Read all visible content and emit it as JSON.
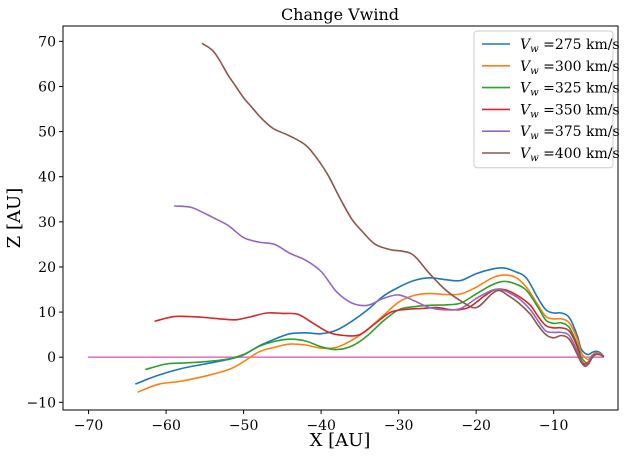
{
  "chart_data": {
    "type": "line",
    "title": "Change Vwind",
    "xlabel": "X [AU]",
    "ylabel": "Z [AU]",
    "xlim": [
      -73.3,
      -1.7
    ],
    "ylim": [
      -11.7,
      73.4
    ],
    "x_ticks": [
      -70,
      -60,
      -50,
      -40,
      -30,
      -20,
      -10
    ],
    "x_tick_labels": [
      "−70",
      "−60",
      "−50",
      "−40",
      "−30",
      "−20",
      "−10"
    ],
    "y_ticks": [
      -10,
      0,
      10,
      20,
      30,
      40,
      50,
      60,
      70
    ],
    "y_tick_labels": [
      "−10",
      "0",
      "10",
      "20",
      "30",
      "40",
      "50",
      "60",
      "70"
    ],
    "grid": false,
    "legend_position": "top-right",
    "series": [
      {
        "name": "Vw =275 km/s",
        "legend_var": "V",
        "legend_sub": "w",
        "legend_rest": " =275 km/s",
        "color": "#1f77b4",
        "x": [
          -63.9,
          -61,
          -58,
          -55,
          -52,
          -50,
          -48,
          -46,
          -44,
          -42,
          -40,
          -38,
          -36,
          -34,
          -32,
          -30,
          -28,
          -26,
          -24,
          -22,
          -20,
          -18,
          -16.5,
          -15,
          -13.5,
          -12,
          -11,
          -10,
          -9,
          -8,
          -7,
          -6.5,
          -6,
          -5.5,
          -5,
          -4.5,
          -4,
          -3.6
        ],
        "y": [
          -5.9,
          -4,
          -2.5,
          -1.5,
          -0.5,
          0.5,
          2.5,
          4.0,
          5.2,
          5.4,
          5.2,
          6.0,
          8.0,
          10.5,
          13.5,
          15.5,
          17,
          17.6,
          17.2,
          17.0,
          18.5,
          19.5,
          19.8,
          19.0,
          17.5,
          13.0,
          10.5,
          9.8,
          9.8,
          8.8,
          5.0,
          2.0,
          0.9,
          0.6,
          1.1,
          1.3,
          1.0,
          0.3
        ]
      },
      {
        "name": "Vw =300 km/s",
        "legend_var": "V",
        "legend_sub": "w",
        "legend_rest": " =300 km/s",
        "color": "#ff7f0e",
        "x": [
          -63.6,
          -61,
          -58,
          -55,
          -52,
          -50,
          -48,
          -46,
          -44,
          -42,
          -40,
          -38,
          -36,
          -34,
          -32,
          -30,
          -28,
          -26,
          -24,
          -22,
          -20,
          -18,
          -16.5,
          -15,
          -13.5,
          -12,
          -11,
          -10,
          -9,
          -8,
          -7,
          -6.5,
          -6,
          -5.5,
          -5,
          -4.5,
          -4,
          -3.6
        ],
        "y": [
          -7.7,
          -6.0,
          -5.3,
          -4.2,
          -2.8,
          -1.0,
          1.2,
          2.2,
          2.9,
          2.7,
          2.0,
          2.2,
          3.8,
          6.2,
          9.2,
          12.2,
          13.7,
          14.1,
          13.9,
          14.0,
          15.5,
          17.5,
          18.2,
          17.8,
          15.5,
          11.5,
          9.0,
          8.5,
          8.5,
          7.6,
          4.2,
          1.2,
          0.0,
          -0.5,
          0.5,
          1.0,
          0.8,
          0.3
        ]
      },
      {
        "name": "Vw =325 km/s",
        "legend_var": "V",
        "legend_sub": "w",
        "legend_rest": " =325 km/s",
        "color": "#2ca02c",
        "x": [
          -62.6,
          -60,
          -58,
          -55,
          -52,
          -50,
          -48,
          -46,
          -44,
          -42,
          -40,
          -38,
          -36,
          -34,
          -32,
          -30,
          -28,
          -26,
          -24,
          -22,
          -20,
          -18,
          -16.5,
          -15,
          -13.5,
          -12,
          -11,
          -10,
          -9,
          -8,
          -7,
          -6.5,
          -6,
          -5.5,
          -5,
          -4.5,
          -4,
          -3.6
        ],
        "y": [
          -2.7,
          -1.5,
          -1.3,
          -1.0,
          -0.4,
          0.6,
          2.4,
          3.5,
          4.0,
          3.6,
          2.3,
          1.7,
          2.5,
          4.8,
          8.0,
          10.5,
          11.2,
          11.5,
          11.6,
          12.0,
          14.0,
          16.0,
          16.8,
          16.3,
          14.8,
          11.0,
          8.2,
          7.5,
          7.6,
          6.6,
          3.0,
          0.3,
          -1.0,
          -1.3,
          0.0,
          0.8,
          0.6,
          0.2
        ]
      },
      {
        "name": "Vw =350 km/s",
        "legend_var": "V",
        "legend_sub": "w",
        "legend_rest": " =350 km/s",
        "color": "#d62728",
        "x": [
          -61.4,
          -59,
          -57,
          -55,
          -53,
          -51,
          -49,
          -47,
          -45,
          -43,
          -41,
          -39,
          -37,
          -35,
          -33,
          -31,
          -29,
          -27,
          -25,
          -23,
          -21,
          -19,
          -17.5,
          -16,
          -14.5,
          -13,
          -12,
          -11,
          -10,
          -9,
          -8,
          -7,
          -6.5,
          -6,
          -5.5,
          -5,
          -4.5,
          -4,
          -3.6
        ],
        "y": [
          8.0,
          9.0,
          9.0,
          8.8,
          8.5,
          8.3,
          9.0,
          9.8,
          9.7,
          9.5,
          7.5,
          5.5,
          4.8,
          5.0,
          7.5,
          10.0,
          10.6,
          10.8,
          11.0,
          10.5,
          11.0,
          13.5,
          15.0,
          14.8,
          13.5,
          11.5,
          9.0,
          7.0,
          6.5,
          6.5,
          5.8,
          2.5,
          -0.5,
          -1.5,
          -1.0,
          0.3,
          0.8,
          0.6,
          0.2
        ]
      },
      {
        "name": "Vw =375 km/s",
        "legend_var": "V",
        "legend_sub": "w",
        "legend_rest": " =375 km/s",
        "color": "#9467bd",
        "x": [
          -58.9,
          -57,
          -56,
          -54,
          -52,
          -50,
          -48,
          -46,
          -44,
          -42,
          -40,
          -38,
          -36,
          -34,
          -32,
          -30,
          -28,
          -26,
          -24,
          -22,
          -20,
          -18,
          -17,
          -16,
          -14.5,
          -13,
          -12,
          -11,
          -10,
          -9,
          -8,
          -7,
          -6.5,
          -6,
          -5.5,
          -5,
          -4.5,
          -4,
          -3.6
        ],
        "y": [
          33.5,
          33.3,
          32.7,
          31.0,
          29.2,
          26.5,
          25.5,
          25.0,
          23.0,
          21.5,
          19.0,
          14.5,
          12.0,
          11.5,
          13.0,
          13.8,
          12.5,
          11.0,
          10.5,
          10.8,
          13.0,
          14.8,
          15.0,
          14.5,
          13.0,
          10.5,
          8.0,
          5.8,
          5.5,
          5.5,
          4.8,
          1.5,
          -0.8,
          -1.8,
          -1.2,
          0.3,
          0.8,
          0.6,
          0.2
        ]
      },
      {
        "name": "Vw =400 km/s",
        "legend_var": "V",
        "legend_sub": "w",
        "legend_rest": " =400 km/s",
        "color": "#8c564b",
        "x": [
          -55.3,
          -54,
          -53,
          -52,
          -51,
          -50,
          -49,
          -48,
          -47,
          -46,
          -44,
          -42,
          -40.5,
          -39,
          -37.5,
          -36,
          -34.5,
          -33,
          -31,
          -29.5,
          -28,
          -26,
          -24,
          -22,
          -20,
          -18,
          -17,
          -16,
          -14.5,
          -13,
          -12,
          -11,
          -10,
          -9,
          -8,
          -7,
          -6.5,
          -6,
          -5.5,
          -5,
          -4.5,
          -4,
          -3.6
        ],
        "y": [
          69.5,
          68.0,
          65.5,
          62.5,
          60.0,
          57.5,
          55.5,
          53.5,
          51.8,
          50.5,
          49.0,
          47.0,
          44.0,
          40.0,
          35.0,
          30.5,
          27.5,
          25.0,
          23.8,
          23.5,
          22.5,
          18.5,
          15.0,
          12.5,
          11.0,
          14.0,
          14.8,
          13.8,
          12.0,
          9.5,
          7.0,
          5.0,
          4.3,
          4.8,
          4.0,
          0.8,
          -1.0,
          -2.0,
          -1.5,
          0.0,
          0.6,
          0.5,
          0.2
        ]
      },
      {
        "name": "baseline",
        "legend": false,
        "color": "#e377c2",
        "x": [
          -70,
          -3.6
        ],
        "y": [
          0.0,
          0.0
        ]
      }
    ]
  }
}
